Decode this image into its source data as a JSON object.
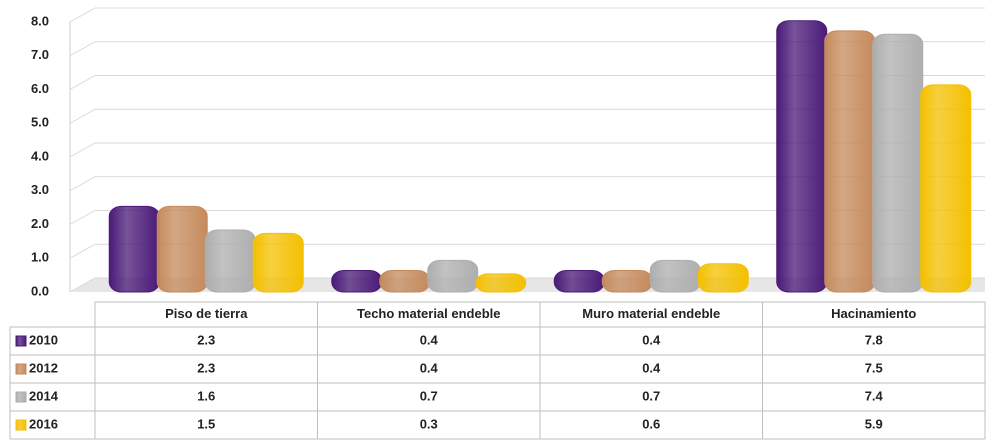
{
  "chart_data": {
    "type": "bar",
    "categories": [
      "Piso de tierra",
      "Techo material endeble",
      "Muro material endeble",
      "Hacinamiento"
    ],
    "series": [
      {
        "name": "2010",
        "color": "#4a1a78",
        "values": [
          2.3,
          0.4,
          0.4,
          7.8
        ]
      },
      {
        "name": "2012",
        "color": "#c58a5c",
        "values": [
          2.3,
          0.4,
          0.4,
          7.5
        ]
      },
      {
        "name": "2014",
        "color": "#aeaeae",
        "values": [
          1.6,
          0.7,
          0.7,
          7.4
        ]
      },
      {
        "name": "2016",
        "color": "#f4c000",
        "values": [
          1.5,
          0.3,
          0.6,
          5.9
        ]
      }
    ],
    "ylim": [
      0,
      8
    ],
    "yticks": [
      {
        "value": 0,
        "label": "0.0"
      },
      {
        "value": 1,
        "label": "1.0"
      },
      {
        "value": 2,
        "label": "2.0"
      },
      {
        "value": 3,
        "label": "3.0"
      },
      {
        "value": 4,
        "label": "4.0"
      },
      {
        "value": 5,
        "label": "5.0"
      },
      {
        "value": 6,
        "label": "6.0"
      },
      {
        "value": 7,
        "label": "7.0"
      },
      {
        "value": 8,
        "label": "8.0"
      }
    ],
    "grid": true
  }
}
